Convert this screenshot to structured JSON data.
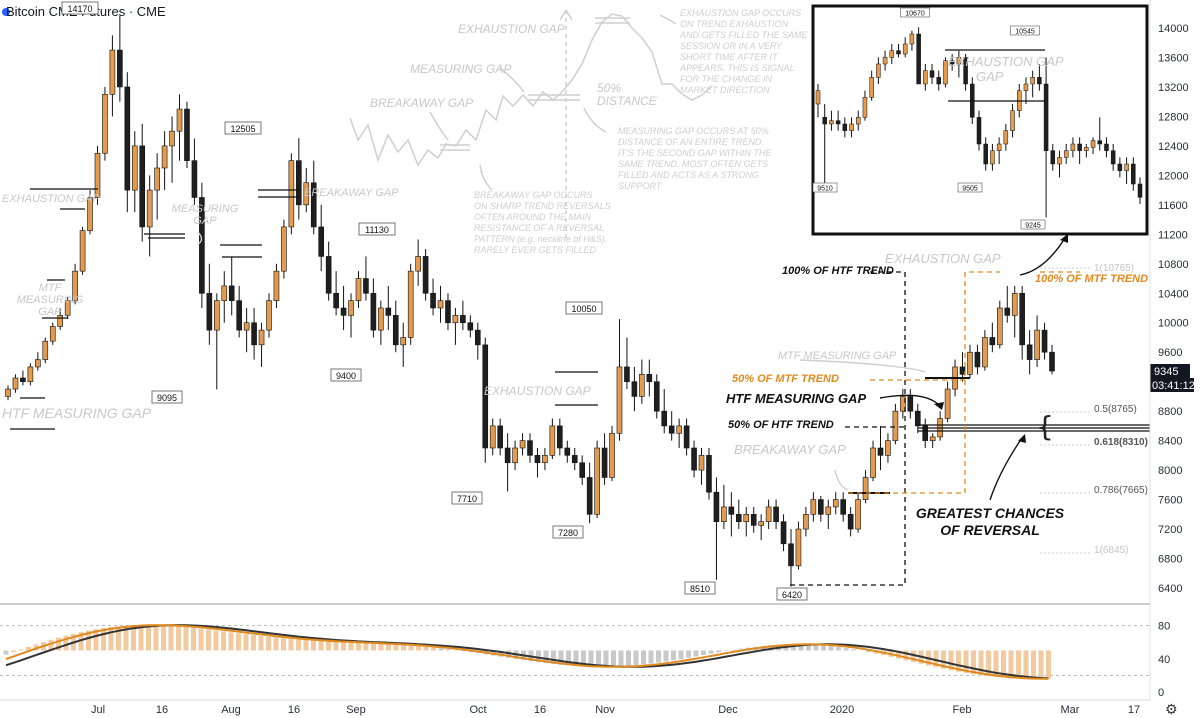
{
  "header": {
    "title": "Bitcoin CME Futures · CME"
  },
  "chart_data": {
    "type": "candlestick",
    "price_axis": {
      "ticks": [
        6400,
        6800,
        7200,
        7600,
        8000,
        8400,
        8800,
        9200,
        9600,
        10000,
        10400,
        10800,
        11200,
        11600,
        12000,
        12400,
        12800,
        13200,
        13600,
        14000
      ],
      "ylim": [
        6100,
        14300
      ]
    },
    "time_axis": {
      "labels": [
        "Jul",
        "16",
        "Aug",
        "16",
        "Sep",
        "Oct",
        "16",
        "Nov",
        "Dec",
        "2020",
        "Feb",
        "Mar",
        "17"
      ]
    },
    "last_price": "9345",
    "countdown": "03:41:12",
    "candles": [
      [
        9000,
        9150,
        8950,
        9100
      ],
      [
        9100,
        9300,
        9050,
        9250
      ],
      [
        9250,
        9350,
        9150,
        9200
      ],
      [
        9200,
        9450,
        9150,
        9400
      ],
      [
        9400,
        9600,
        9350,
        9500
      ],
      [
        9500,
        9800,
        9450,
        9750
      ],
      [
        9750,
        10000,
        9700,
        9950
      ],
      [
        9950,
        10200,
        9900,
        10100
      ],
      [
        10100,
        10350,
        10050,
        10300
      ],
      [
        10300,
        10800,
        10250,
        10700
      ],
      [
        10700,
        11300,
        10650,
        11250
      ],
      [
        11250,
        11800,
        11200,
        11700
      ],
      [
        11700,
        12400,
        11600,
        12300
      ],
      [
        12300,
        13200,
        12200,
        13100
      ],
      [
        13100,
        13900,
        12800,
        13700
      ],
      [
        13700,
        14170,
        13000,
        13200
      ],
      [
        13200,
        13400,
        11500,
        11800
      ],
      [
        11800,
        12600,
        11500,
        12400
      ],
      [
        12400,
        12700,
        11100,
        11300
      ],
      [
        11300,
        12000,
        10900,
        11800
      ],
      [
        11800,
        12300,
        11400,
        12100
      ],
      [
        12100,
        12600,
        11800,
        12400
      ],
      [
        12400,
        12800,
        11900,
        12600
      ],
      [
        12600,
        13100,
        12200,
        12900
      ],
      [
        12900,
        13000,
        12100,
        12200
      ],
      [
        12200,
        12500,
        11600,
        11700
      ],
      [
        11700,
        11900,
        10200,
        10400
      ],
      [
        10400,
        10800,
        9700,
        9900
      ],
      [
        9900,
        10400,
        9095,
        10300
      ],
      [
        10300,
        10700,
        10000,
        10500
      ],
      [
        10500,
        10900,
        10100,
        10300
      ],
      [
        10300,
        10500,
        9800,
        9900
      ],
      [
        9900,
        10200,
        9600,
        10000
      ],
      [
        10000,
        10200,
        9500,
        9700
      ],
      [
        9700,
        10000,
        9400,
        9900
      ],
      [
        9900,
        10400,
        9800,
        10300
      ],
      [
        10300,
        10800,
        10200,
        10700
      ],
      [
        10700,
        11400,
        10600,
        11300
      ],
      [
        11300,
        12300,
        11200,
        12200
      ],
      [
        12200,
        12505,
        11400,
        11600
      ],
      [
        11600,
        12100,
        11500,
        11900
      ],
      [
        11900,
        12200,
        11200,
        11300
      ],
      [
        11300,
        11600,
        10700,
        10900
      ],
      [
        10900,
        11100,
        10300,
        10400
      ],
      [
        10400,
        10700,
        10100,
        10200
      ],
      [
        10200,
        10500,
        9900,
        10100
      ],
      [
        10100,
        10400,
        9800,
        10300
      ],
      [
        10300,
        10700,
        10200,
        10600
      ],
      [
        10600,
        10900,
        10300,
        10400
      ],
      [
        10400,
        10600,
        9800,
        9900
      ],
      [
        9900,
        10300,
        9700,
        10200
      ],
      [
        10200,
        10500,
        9900,
        10100
      ],
      [
        10100,
        10300,
        9600,
        9700
      ],
      [
        9700,
        10000,
        9400,
        9800
      ],
      [
        9800,
        10800,
        9700,
        10700
      ],
      [
        10700,
        11130,
        10500,
        10900
      ],
      [
        10900,
        11000,
        10300,
        10400
      ],
      [
        10400,
        10600,
        10100,
        10200
      ],
      [
        10200,
        10500,
        10000,
        10300
      ],
      [
        10300,
        10400,
        9900,
        10000
      ],
      [
        10000,
        10200,
        9700,
        10100
      ],
      [
        10100,
        10300,
        9900,
        10000
      ],
      [
        10000,
        10100,
        9800,
        9900
      ],
      [
        9900,
        10000,
        9500,
        9700
      ],
      [
        9700,
        9800,
        8100,
        8300
      ],
      [
        8300,
        8700,
        8200,
        8600
      ],
      [
        8600,
        8700,
        8200,
        8300
      ],
      [
        8300,
        8500,
        7710,
        8100
      ],
      [
        8100,
        8400,
        8000,
        8300
      ],
      [
        8300,
        8500,
        8200,
        8400
      ],
      [
        8400,
        8500,
        8100,
        8200
      ],
      [
        8200,
        8300,
        7900,
        8100
      ],
      [
        8100,
        8300,
        8000,
        8200
      ],
      [
        8200,
        8700,
        8150,
        8600
      ],
      [
        8600,
        8700,
        8200,
        8300
      ],
      [
        8300,
        8400,
        8100,
        8200
      ],
      [
        8200,
        8300,
        8000,
        8100
      ],
      [
        8100,
        8200,
        7800,
        7900
      ],
      [
        7900,
        8100,
        7280,
        7400
      ],
      [
        7400,
        8400,
        7350,
        8300
      ],
      [
        8300,
        8500,
        7800,
        7900
      ],
      [
        7900,
        8600,
        7850,
        8500
      ],
      [
        8500,
        10050,
        8400,
        9400
      ],
      [
        9400,
        9800,
        9100,
        9200
      ],
      [
        9200,
        9400,
        8800,
        9000
      ],
      [
        9000,
        9500,
        8900,
        9300
      ],
      [
        9300,
        9500,
        9000,
        9200
      ],
      [
        9200,
        9300,
        8700,
        8800
      ],
      [
        8800,
        9100,
        8500,
        8600
      ],
      [
        8600,
        8800,
        8400,
        8500
      ],
      [
        8500,
        8700,
        8300,
        8600
      ],
      [
        8600,
        8700,
        8200,
        8300
      ],
      [
        8300,
        8400,
        7900,
        8000
      ],
      [
        8000,
        8300,
        7800,
        8200
      ],
      [
        8200,
        8300,
        7600,
        7700
      ],
      [
        7700,
        7900,
        6510,
        7300
      ],
      [
        7300,
        7800,
        7200,
        7500
      ],
      [
        7500,
        7700,
        7100,
        7400
      ],
      [
        7400,
        7600,
        7200,
        7300
      ],
      [
        7300,
        7500,
        7100,
        7400
      ],
      [
        7400,
        7500,
        7150,
        7250
      ],
      [
        7250,
        7400,
        7050,
        7300
      ],
      [
        7300,
        7600,
        7200,
        7500
      ],
      [
        7500,
        7600,
        7200,
        7300
      ],
      [
        7300,
        7400,
        6900,
        7000
      ],
      [
        7000,
        7200,
        6420,
        6700
      ],
      [
        6700,
        7300,
        6650,
        7200
      ],
      [
        7200,
        7500,
        7100,
        7400
      ],
      [
        7400,
        7700,
        7300,
        7600
      ],
      [
        7600,
        7650,
        7300,
        7400
      ],
      [
        7400,
        7600,
        7200,
        7500
      ],
      [
        7500,
        7700,
        7400,
        7600
      ],
      [
        7600,
        7700,
        7300,
        7400
      ],
      [
        7400,
        7500,
        7100,
        7200
      ],
      [
        7200,
        7700,
        7150,
        7600
      ],
      [
        7600,
        8000,
        7550,
        7900
      ],
      [
        7900,
        8400,
        7850,
        8300
      ],
      [
        8300,
        8600,
        8000,
        8200
      ],
      [
        8200,
        8500,
        8100,
        8400
      ],
      [
        8400,
        8900,
        8350,
        8800
      ],
      [
        8800,
        9100,
        8700,
        9000
      ],
      [
        9000,
        9100,
        8700,
        8800
      ],
      [
        8800,
        8900,
        8500,
        8600
      ],
      [
        8600,
        8700,
        8300,
        8400
      ],
      [
        8400,
        8500,
        8300,
        8450
      ],
      [
        8450,
        8800,
        8400,
        8700
      ],
      [
        8700,
        9200,
        8650,
        9100
      ],
      [
        9100,
        9500,
        9000,
        9400
      ],
      [
        9400,
        9600,
        9200,
        9300
      ],
      [
        9300,
        9700,
        9250,
        9600
      ],
      [
        9600,
        9700,
        9300,
        9400
      ],
      [
        9400,
        9900,
        9350,
        9800
      ],
      [
        9800,
        10000,
        9600,
        9700
      ],
      [
        9700,
        10300,
        9650,
        10200
      ],
      [
        10200,
        10500,
        10000,
        10100
      ],
      [
        10100,
        10500,
        9800,
        10400
      ],
      [
        10400,
        10500,
        9500,
        9700
      ],
      [
        9700,
        9900,
        9300,
        9500
      ],
      [
        9500,
        10100,
        9400,
        9900
      ],
      [
        9900,
        10000,
        9500,
        9600
      ],
      [
        9600,
        9700,
        9300,
        9345
      ]
    ],
    "inset": {
      "price_labels": [
        "10670",
        "10545",
        "9510",
        "9505",
        "9245"
      ],
      "annotation": "EXHAUSTION GAP"
    },
    "price_callouts": [
      "14170",
      "12505",
      "11130",
      "10050",
      "9095",
      "9400",
      "7710",
      "7280",
      "8510",
      "6420"
    ],
    "fib_levels": [
      {
        "label": "1(10765)",
        "ghost": true
      },
      {
        "label": "0.5(8765)",
        "ghost": false
      },
      {
        "label": "0.618(8310)",
        "ghost": false
      },
      {
        "label": "0.786(7665)",
        "ghost": false
      },
      {
        "label": "1(6845)",
        "ghost": true
      }
    ],
    "annotations": {
      "htf_measuring_gap_left": "HTF MEASURING GAP",
      "exhaustion_gap_left": "EXHAUSTION GAP",
      "mtf_measuring_gap_left": "MTF\nMEASURING\nGAP",
      "measuring_gap_1": "MEASURING\nGAP",
      "breakaway_gap_1": "BREAKAWAY GAP",
      "exhaustion_gap_mid": "EXHAUSTION GAP",
      "breakaway_gap_mid": "BREAKAWAY GAP",
      "htf_measuring_gap": "HTF MEASURING GAP",
      "htf_50": "50% OF HTF TREND",
      "mtf_50": "50% OF MTF TREND",
      "htf_100": "100% OF HTF TREND",
      "mtf_100": "100% OF MTF TREND",
      "mtf_measuring_gap": "MTF MEASURING GAP",
      "exhaustion_gap_right": "EXHAUSTION GAP",
      "greatest_chances": "GREATEST CHANCES\nOF REVERSAL",
      "diagram_exhaustion": "EXHAUSTION GAP",
      "diagram_measuring": "MEASURING GAP",
      "diagram_breakaway": "BREAKAWAY GAP",
      "diagram_50": "50%\nDISTANCE",
      "note_exhaustion": "EXHAUSTION GAP OCCURS\nON TREND EXHAUSTION\nAND GETS FILLED THE SAME\nSESSION OR IN A VERY\nSHORT TIME AFTER IT\nAPPEARS. THIS IS SIGNAL\nFOR THE CHANGE IN\nMARKET DIRECTION",
      "note_measuring": "MEASURING GAP OCCURS AT 50%\nDISTANCE OF AN ENTIRE TREND.\nIT'S THE SECOND GAP WITHIN THE\nSAME TREND. MOST OFTEN GETS\nFILLED AND ACTS AS A STRONG\nSUPPORT",
      "note_breakaway": "BREAKAWAY GAP OCCURS\nON SHARP TREND REVERSALS\nOFTEN AROUND THE MAIN\nRESISTANCE OF A REVERSAL\nPATTERN (e.g. neckline of H&S).\nRARELY EVER GETS FILLED"
    },
    "oscillator": {
      "ticks": [
        "80",
        "40",
        "0"
      ],
      "levels": [
        80,
        20
      ]
    }
  },
  "colors": {
    "bull": "#e39b4f",
    "bear": "#1f1f1f",
    "orange": "#e08a1e",
    "grid": "#cccccc"
  }
}
